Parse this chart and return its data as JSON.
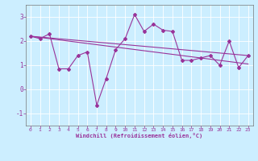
{
  "xlabel": "Windchill (Refroidissement éolien,°C)",
  "bg_color": "#cceeff",
  "line_color": "#993399",
  "xlim": [
    -0.5,
    23.5
  ],
  "ylim": [
    -1.5,
    3.5
  ],
  "yticks": [
    -1,
    0,
    1,
    2,
    3
  ],
  "xticks": [
    0,
    1,
    2,
    3,
    4,
    5,
    6,
    7,
    8,
    9,
    10,
    11,
    12,
    13,
    14,
    15,
    16,
    17,
    18,
    19,
    20,
    21,
    22,
    23
  ],
  "series1_x": [
    0,
    1,
    2,
    3,
    4,
    5,
    6,
    7,
    8,
    9,
    10,
    11,
    12,
    13,
    14,
    15,
    16,
    17,
    18,
    19,
    20,
    21,
    22,
    23
  ],
  "series1_y": [
    2.2,
    2.1,
    2.3,
    0.85,
    0.85,
    1.4,
    1.55,
    -0.65,
    0.45,
    1.65,
    2.1,
    3.1,
    2.4,
    2.7,
    2.45,
    2.4,
    1.2,
    1.2,
    1.3,
    1.4,
    1.0,
    2.0,
    0.9,
    1.4
  ],
  "series2_x": [
    0,
    23
  ],
  "series2_y": [
    2.2,
    1.4
  ],
  "series3_x": [
    0,
    23
  ],
  "series3_y": [
    2.2,
    1.05
  ]
}
